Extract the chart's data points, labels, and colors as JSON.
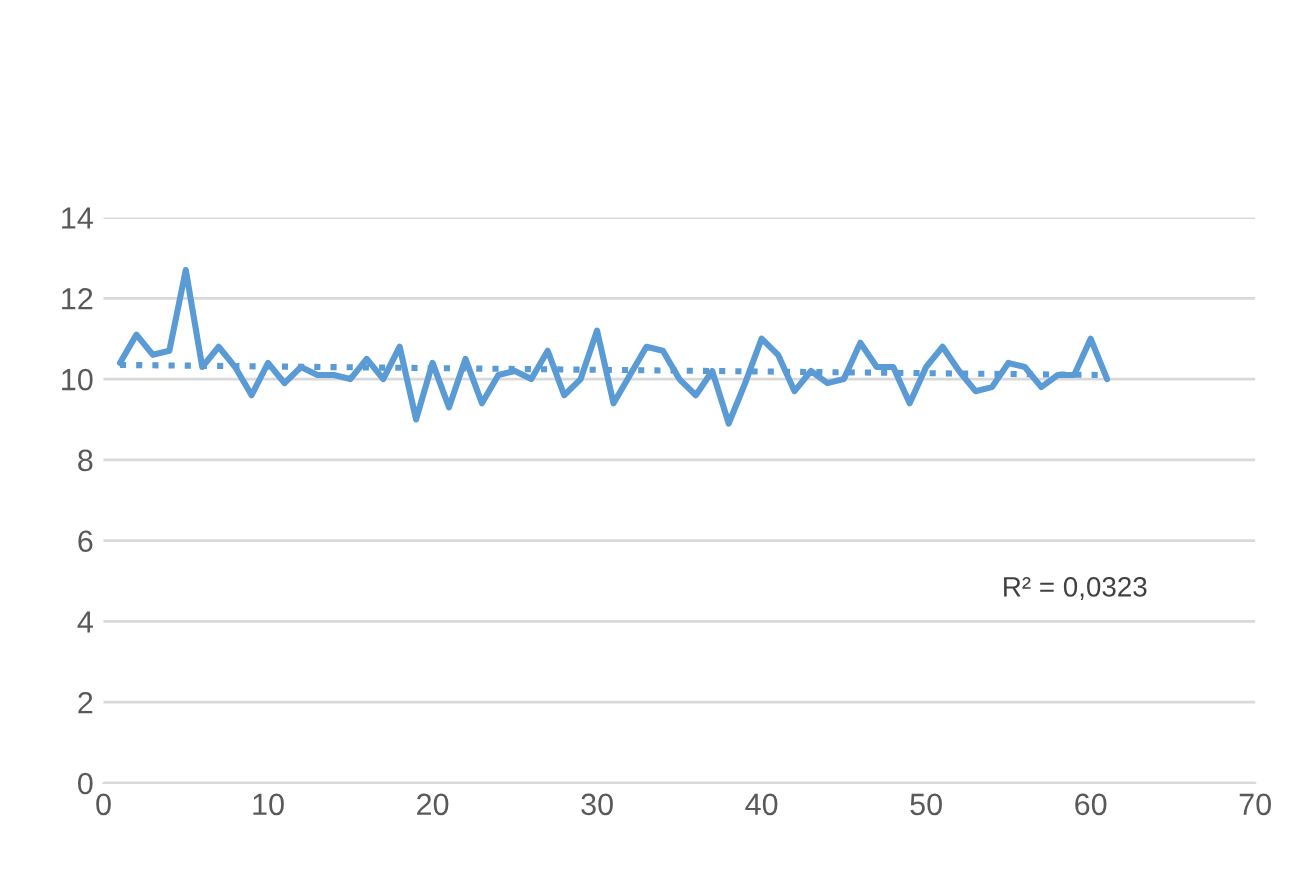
{
  "chart_data": {
    "type": "line",
    "x": [
      1,
      2,
      3,
      4,
      5,
      6,
      7,
      8,
      9,
      10,
      11,
      12,
      13,
      14,
      15,
      16,
      17,
      18,
      19,
      20,
      21,
      22,
      23,
      24,
      25,
      26,
      27,
      28,
      29,
      30,
      31,
      32,
      33,
      34,
      35,
      36,
      37,
      38,
      39,
      40,
      41,
      42,
      43,
      44,
      45,
      46,
      47,
      48,
      49,
      50,
      51,
      52,
      53,
      54,
      55,
      56,
      57,
      58,
      59,
      60,
      61
    ],
    "series": [
      {
        "color": "#5b9bd5",
        "line_style": "solid",
        "values": [
          10.4,
          11.1,
          10.6,
          10.7,
          12.7,
          10.3,
          10.8,
          10.3,
          9.6,
          10.4,
          9.9,
          10.3,
          10.1,
          10.1,
          10.0,
          10.5,
          10.0,
          10.8,
          9.0,
          10.4,
          9.3,
          10.5,
          9.4,
          10.1,
          10.2,
          10.0,
          10.7,
          9.6,
          10.0,
          11.2,
          9.4,
          10.1,
          10.8,
          10.7,
          10.0,
          9.6,
          10.2,
          8.9,
          9.9,
          11.0,
          10.6,
          9.7,
          10.2,
          9.9,
          10.0,
          10.9,
          10.3,
          10.3,
          9.4,
          10.3,
          10.8,
          10.2,
          9.7,
          9.8,
          10.4,
          10.3,
          9.8,
          10.1,
          10.1,
          11.0,
          10.0
        ]
      },
      {
        "type": "line",
        "color": "#5b9bd5",
        "line_style": "dotted",
        "x": [
          1,
          61
        ],
        "values": [
          10.35,
          10.1
        ]
      }
    ],
    "annotations": [
      "R² = 0,0323"
    ],
    "xlim": [
      0,
      70
    ],
    "xticks": [
      0,
      10,
      20,
      30,
      40,
      50,
      60,
      70
    ],
    "ylim": [
      0,
      14
    ],
    "yticks": [
      0,
      2,
      4,
      6,
      8,
      10,
      12,
      14
    ],
    "grid": "y",
    "marker": "none"
  }
}
